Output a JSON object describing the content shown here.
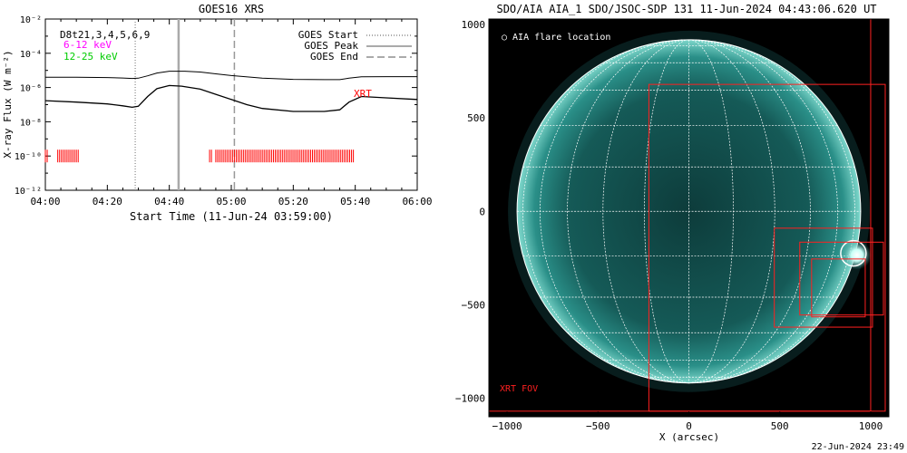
{
  "footer_timestamp": "22-Jun-2024 23:49",
  "chart_data": [
    {
      "type": "line",
      "title": "GOES16 XRS",
      "xlabel": "Start Time (11-Jun-24 03:59:00)",
      "ylabel": "X-ray Flux (W m⁻²)",
      "x_ticks": [
        "04:00",
        "04:20",
        "04:40",
        "05:00",
        "05:20",
        "05:40",
        "06:00"
      ],
      "y_scale": "log",
      "y_ticks": [
        "10⁻²",
        "10⁻⁴",
        "10⁻⁶",
        "10⁻⁸",
        "10⁻¹⁰",
        "10⁻¹²"
      ],
      "ylim": [
        "1e-12",
        "1e-2"
      ],
      "xlim": [
        "04:00",
        "06:00"
      ],
      "legend_position": "top-right",
      "legend": [
        {
          "label": "GOES Start",
          "style": "dotted"
        },
        {
          "label": "GOES Peak",
          "style": "solid"
        },
        {
          "label": "GOES End",
          "style": "dashed"
        }
      ],
      "annotations": {
        "detectors": "D8t21,3,4,5,6,9",
        "band_low": "6-12 keV",
        "band_high": "12-25 keV",
        "xrt_label": "XRT"
      },
      "colors": {
        "band_low": "#ff00ff",
        "band_high": "#00cc00",
        "xrt": "#ff0000"
      },
      "markers": {
        "goes_start": "04:29",
        "goes_peak": "04:43",
        "goes_end": "05:01"
      },
      "series": [
        {
          "name": "",
          "x": [
            "04:00",
            "04:10",
            "04:20",
            "04:25",
            "04:28",
            "04:30",
            "04:33",
            "04:36",
            "04:40",
            "04:45",
            "04:50",
            "04:55",
            "05:00",
            "05:10",
            "05:20",
            "05:30",
            "05:35",
            "05:38",
            "05:42",
            "05:50",
            "06:00"
          ],
          "y": [
            4e-06,
            4e-06,
            3.8e-06,
            3.6e-06,
            3.4e-06,
            3.5e-06,
            4.8e-06,
            7e-06,
            9e-06,
            9e-06,
            8e-06,
            6.3e-06,
            5e-06,
            3.5e-06,
            3e-06,
            2.9e-06,
            2.9e-06,
            3.5e-06,
            4.2e-06,
            4.3e-06,
            4.3e-06
          ]
        },
        {
          "name": "",
          "x": [
            "04:00",
            "04:10",
            "04:20",
            "04:25",
            "04:28",
            "04:30",
            "04:33",
            "04:36",
            "04:40",
            "04:44",
            "04:50",
            "04:55",
            "05:00",
            "05:05",
            "05:10",
            "05:20",
            "05:30",
            "05:35",
            "05:38",
            "05:42",
            "05:50",
            "06:00"
          ],
          "y": [
            1.7e-07,
            1.4e-07,
            1.1e-07,
            8.5e-08,
            7e-08,
            8e-08,
            3e-07,
            8.5e-07,
            1.3e-06,
            1.2e-06,
            8e-07,
            4e-07,
            2e-07,
            1e-07,
            6e-08,
            4e-08,
            4e-08,
            5e-08,
            1.4e-07,
            3e-07,
            2.5e-07,
            2e-07
          ]
        }
      ],
      "xrt_observation_spans": [
        [
          "04:00",
          "04:01"
        ],
        [
          "04:04",
          "04:11"
        ],
        [
          "04:53",
          "04:54"
        ],
        [
          "04:55",
          "05:40"
        ]
      ]
    },
    {
      "type": "scatter",
      "title": "SDO/AIA AIA_1 SDO/JSOC-SDP 131 11-Jun-2024 04:43:06.620 UT",
      "xlabel": "X (arcsec)",
      "ylabel": "",
      "x_ticks": [
        "−1000",
        "−500",
        "0",
        "500",
        "1000"
      ],
      "y_ticks": [
        "1000",
        "500",
        "0",
        "−500",
        "−1000"
      ],
      "xlim": [
        -1100,
        1100
      ],
      "ylim": [
        -1100,
        1030
      ],
      "legend": "○ AIA flare location",
      "fov_label": "XRT FOV",
      "solar_radius_arcsec": 945,
      "flare_location": {
        "x": 905,
        "y": -225
      },
      "colors": {
        "fov": "#ff2020",
        "grid": "#ffffff",
        "disk": "#0f4a48"
      },
      "fov_boxes": [
        {
          "x1": -1100,
          "y1": -1070,
          "x2": 1000,
          "y2": 1030
        },
        {
          "x1": -220,
          "y1": -1070,
          "x2": 1080,
          "y2": 680
        },
        {
          "x1": 470,
          "y1": -620,
          "x2": 1010,
          "y2": -90
        },
        {
          "x1": 610,
          "y1": -555,
          "x2": 1070,
          "y2": -165
        },
        {
          "x1": 675,
          "y1": -565,
          "x2": 970,
          "y2": -255
        }
      ]
    }
  ]
}
